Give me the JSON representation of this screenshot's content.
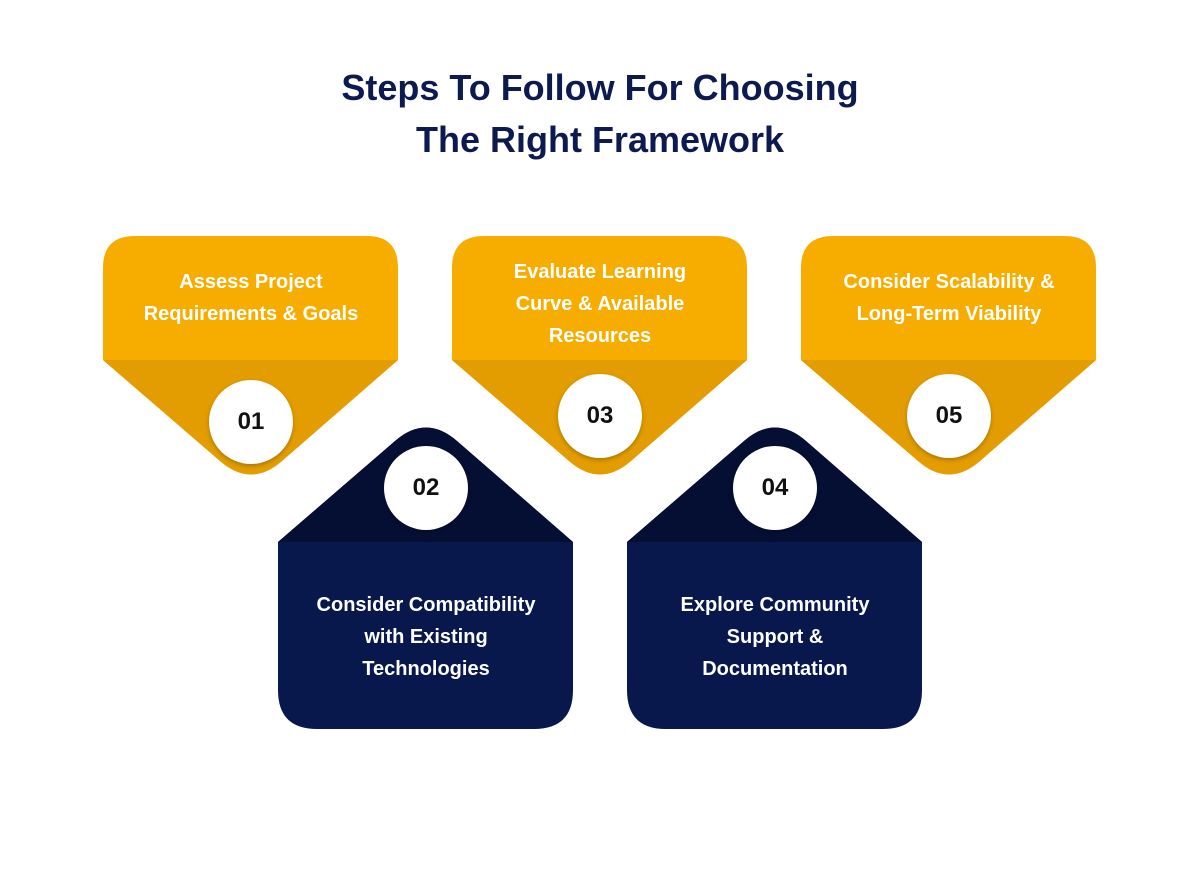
{
  "title": {
    "line1": "Steps To Follow For Choosing",
    "line2": "The Right Framework"
  },
  "colors": {
    "gold": "#f7ac00",
    "gold_shade": "#e39d00",
    "navy": "#08184d",
    "navy_shade": "#050f33",
    "title": "#0c1a50"
  },
  "steps": [
    {
      "number": "01",
      "label": "Assess Project Requirements & Goals"
    },
    {
      "number": "02",
      "label": "Consider Compatibility with Existing Technologies"
    },
    {
      "number": "03",
      "label": "Evaluate Learning Curve & Available Resources"
    },
    {
      "number": "04",
      "label": "Explore Community Support & Documentation"
    },
    {
      "number": "05",
      "label": "Consider Scalability & Long-Term Viability"
    }
  ]
}
